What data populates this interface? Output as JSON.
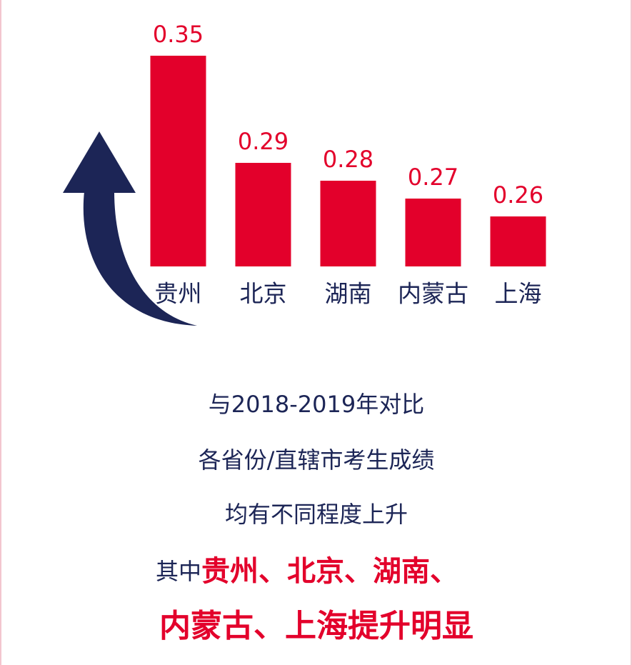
{
  "chart_data": {
    "type": "bar",
    "categories": [
      "贵州",
      "北京",
      "湖南",
      "内蒙古",
      "上海"
    ],
    "values": [
      0.35,
      0.29,
      0.28,
      0.27,
      0.26
    ],
    "color": "#e3002b",
    "ylim": [
      0.232,
      0.35
    ]
  },
  "summary": {
    "lines": [
      "与2018-2019年对比",
      "各省份/直辖市考生成绩",
      "均有不同程度上升"
    ],
    "prefix": "其中",
    "highlight": [
      "贵州、北京、湖南、",
      "内蒙古、上海提升明显"
    ]
  }
}
